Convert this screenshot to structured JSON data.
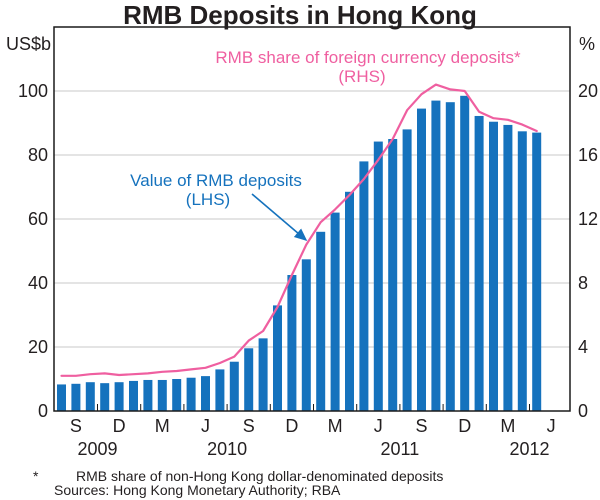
{
  "title": "RMB Deposits in Hong Kong",
  "left_axis": {
    "unit": "US$b",
    "ticks": [
      0,
      20,
      40,
      60,
      80,
      100
    ],
    "max": 120
  },
  "right_axis": {
    "unit": "%",
    "ticks": [
      0,
      4,
      8,
      12,
      16,
      20
    ],
    "max": 24
  },
  "x_axis": {
    "quarter_labels": [
      {
        "label": "S",
        "i": 1
      },
      {
        "label": "D",
        "i": 4
      },
      {
        "label": "M",
        "i": 7
      },
      {
        "label": "J",
        "i": 10
      },
      {
        "label": "S",
        "i": 13
      },
      {
        "label": "D",
        "i": 16
      },
      {
        "label": "M",
        "i": 19
      },
      {
        "label": "J",
        "i": 22
      },
      {
        "label": "S",
        "i": 25
      },
      {
        "label": "D",
        "i": 28
      },
      {
        "label": "M",
        "i": 31
      },
      {
        "label": "J",
        "i": 34
      }
    ],
    "year_labels": [
      {
        "label": "2009",
        "i": 2.5
      },
      {
        "label": "2010",
        "i": 11.5
      },
      {
        "label": "2011",
        "i": 23.5
      },
      {
        "label": "2012",
        "i": 32.5
      }
    ]
  },
  "annotations": {
    "share_label_line1": "RMB share of foreign currency deposits*",
    "share_label_line2": "(RHS)",
    "value_label_line1": "Value of RMB deposits",
    "value_label_line2": "(LHS)"
  },
  "footnote": {
    "marker": "*",
    "text": "RMB share of non-Hong Kong dollar-denominated deposits"
  },
  "sources": "Sources: Hong Kong Monetary Authority; RBA",
  "colors": {
    "bar_blue": "#1572bd",
    "line_pink": "#ef5fa0",
    "gridline": "#c9c9c9",
    "frame": "#1a1a1a",
    "text": "#231f20"
  },
  "chart_data": {
    "type": "bar",
    "title": "RMB Deposits in Hong Kong",
    "xlabel": "",
    "ylabel_left": "US$b",
    "ylabel_right": "%",
    "ylim_left": [
      0,
      120
    ],
    "ylim_right": [
      0,
      24
    ],
    "grid": "horizontal",
    "legend_position": "in-plot annotations",
    "categories": [
      "Aug 2009",
      "Sep 2009",
      "Oct 2009",
      "Nov 2009",
      "Dec 2009",
      "Jan 2010",
      "Feb 2010",
      "Mar 2010",
      "Apr 2010",
      "May 2010",
      "Jun 2010",
      "Jul 2010",
      "Aug 2010",
      "Sep 2010",
      "Oct 2010",
      "Nov 2010",
      "Dec 2010",
      "Jan 2011",
      "Feb 2011",
      "Mar 2011",
      "Apr 2011",
      "May 2011",
      "Jun 2011",
      "Jul 2011",
      "Aug 2011",
      "Sep 2011",
      "Oct 2011",
      "Nov 2011",
      "Dec 2011",
      "Jan 2012",
      "Feb 2012",
      "Mar 2012",
      "Apr 2012",
      "May 2012"
    ],
    "series": [
      {
        "name": "Value of RMB deposits (LHS)",
        "type": "bar",
        "axis": "left",
        "units": "US$b",
        "values": [
          8.3,
          8.5,
          9.0,
          8.7,
          9.0,
          9.4,
          9.7,
          9.7,
          10.0,
          10.4,
          10.9,
          13.0,
          15.4,
          19.6,
          22.7,
          33.0,
          42.5,
          47.4,
          56.0,
          62.0,
          68.5,
          78.0,
          84.2,
          85.0,
          88.0,
          94.5,
          97.0,
          96.5,
          98.5,
          92.2,
          90.4,
          89.4,
          87.4,
          87.0
        ]
      },
      {
        "name": "RMB share of foreign currency deposits (RHS)",
        "type": "line",
        "axis": "right",
        "units": "%",
        "values": [
          2.2,
          2.2,
          2.3,
          2.35,
          2.25,
          2.3,
          2.35,
          2.45,
          2.5,
          2.6,
          2.7,
          3.0,
          3.4,
          4.4,
          5.0,
          6.5,
          8.5,
          10.4,
          11.8,
          12.6,
          13.5,
          14.5,
          15.7,
          17.0,
          18.8,
          19.8,
          20.4,
          20.1,
          20.0,
          18.7,
          18.3,
          18.2,
          17.9,
          17.5
        ]
      }
    ]
  }
}
